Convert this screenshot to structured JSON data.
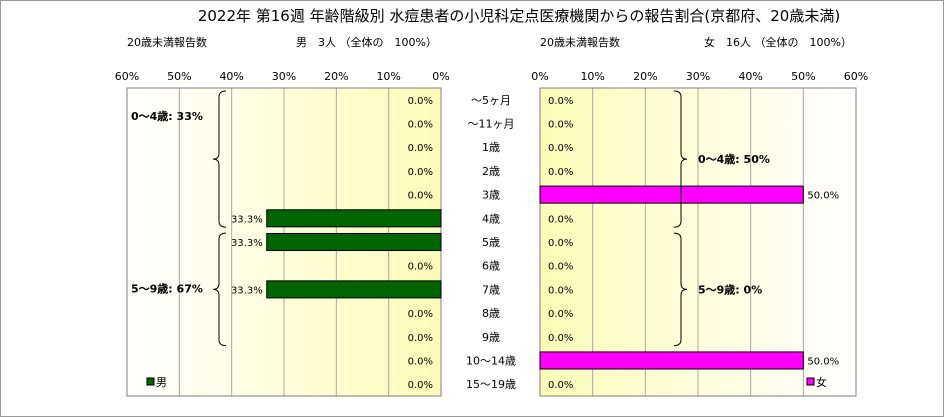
{
  "chart_data": {
    "type": "bar",
    "title": "2022年 第16週 年齢階級別 水痘患者の小児科定点医療機関からの報告割合(京都府、20歳未満)",
    "categories": [
      "〜5ヶ月",
      "〜11ヶ月",
      "1歳",
      "2歳",
      "3歳",
      "4歳",
      "5歳",
      "6歳",
      "7歳",
      "8歳",
      "9歳",
      "10〜14歳",
      "15〜19歳"
    ],
    "series": [
      {
        "name": "男",
        "color": "#006400",
        "header_label": "20歳未満報告数",
        "header_value": "男　3人 （全体の　100%）",
        "values": [
          0,
          0,
          0,
          0,
          0,
          33.3,
          33.3,
          0,
          33.3,
          0,
          0,
          0,
          0
        ],
        "value_labels": [
          "0.0%",
          "0.0%",
          "0.0%",
          "0.0%",
          "0.0%",
          "33.3%",
          "33.3%",
          "0.0%",
          "33.3%",
          "0.0%",
          "0.0%",
          "0.0%",
          "0.0%"
        ],
        "groups": [
          {
            "label": "0〜4歳: 33%",
            "from": 0,
            "to": 5
          },
          {
            "label": "5〜9歳: 67%",
            "from": 6,
            "to": 10
          }
        ]
      },
      {
        "name": "女",
        "color": "#ff00ff",
        "header_label": "20歳未満報告数",
        "header_value": "女　16人 （全体の　100%）",
        "values": [
          0,
          0,
          0,
          0,
          50,
          0,
          0,
          0,
          0,
          0,
          0,
          50,
          0
        ],
        "value_labels": [
          "0.0%",
          "0.0%",
          "0.0%",
          "0.0%",
          "50.0%",
          "0.0%",
          "0.0%",
          "0.0%",
          "0.0%",
          "0.0%",
          "0.0%",
          "50.0%",
          "0.0%"
        ],
        "groups": [
          {
            "label": "0〜4歳: 50%",
            "from": 0,
            "to": 5
          },
          {
            "label": "5〜9歳: 0%",
            "from": 6,
            "to": 10
          }
        ]
      }
    ],
    "xlim": [
      0,
      60
    ],
    "xticks": [
      0,
      10,
      20,
      30,
      40,
      50,
      60
    ],
    "xtick_labels": [
      "0%",
      "10%",
      "20%",
      "30%",
      "40%",
      "50%",
      "60%"
    ],
    "grid": true,
    "legend": [
      "bottom-left",
      "bottom-right"
    ]
  }
}
